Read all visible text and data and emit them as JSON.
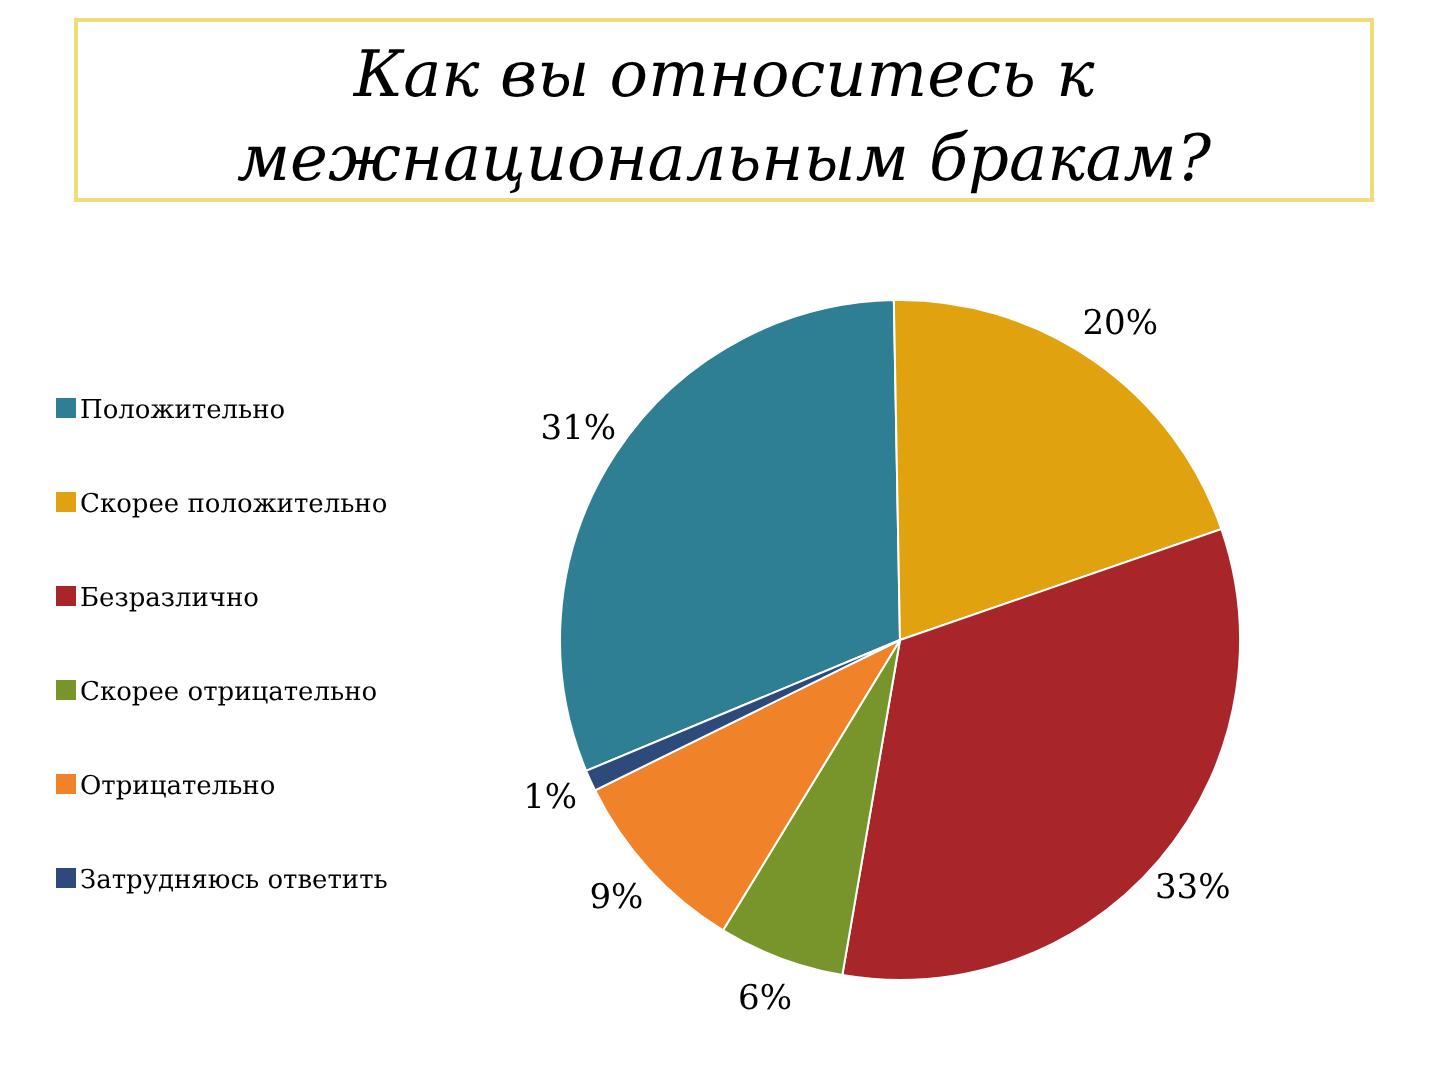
{
  "chart_data": {
    "type": "pie",
    "title": "Как вы относитесь к межнациональным бракам?",
    "categories": [
      "Положительно",
      "Скорее положительно",
      "Безразлично",
      "Скорее отрицательно",
      "Отрицательно",
      "Затрудняюсь ответить"
    ],
    "values": [
      31,
      20,
      33,
      6,
      9,
      1
    ],
    "value_labels": [
      "31%",
      "20%",
      "33%",
      "6%",
      "9%",
      "1%"
    ],
    "colors": [
      "#2e7f94",
      "#e0a30f",
      "#a8262a",
      "#77952a",
      "#f0832a",
      "#2e4a7a"
    ],
    "legend": "left"
  }
}
